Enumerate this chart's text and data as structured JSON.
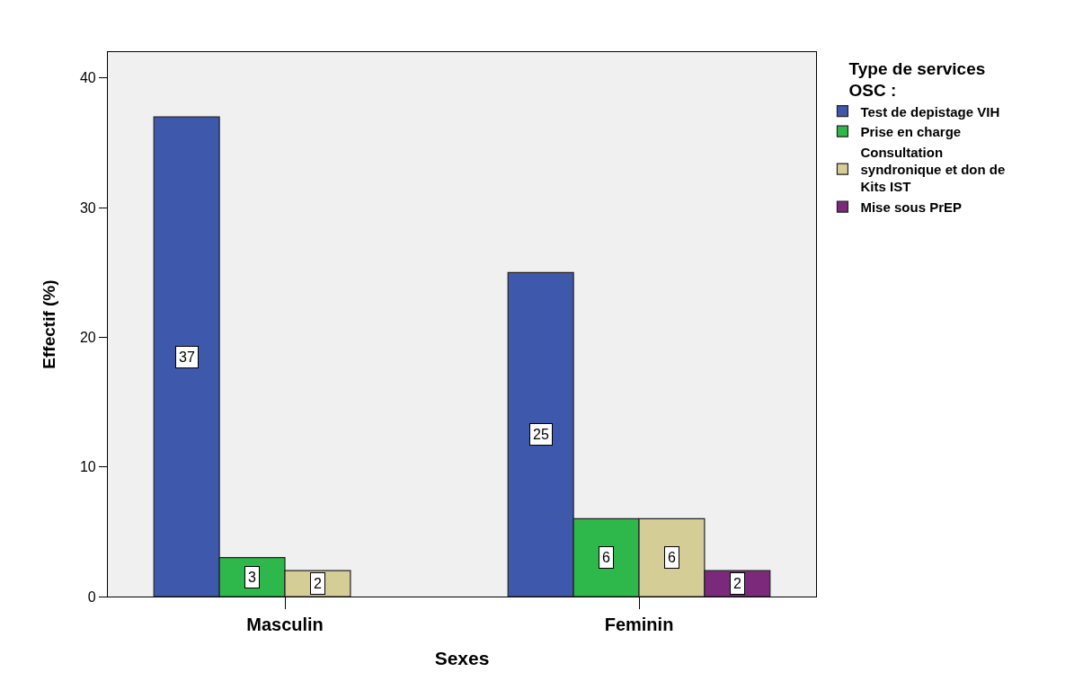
{
  "chart_data": {
    "type": "bar",
    "xlabel": "Sexes",
    "ylabel": "Effectif (%)",
    "legend_title": "Type de services OSC :",
    "categories": [
      "Masculin",
      "Feminin"
    ],
    "series": [
      {
        "name": "Test de depistage VIH",
        "color": "#3e58ac",
        "values": [
          37,
          25
        ]
      },
      {
        "name": "Prise en charge",
        "color": "#2eb84b",
        "values": [
          3,
          6
        ]
      },
      {
        "name": "Consultation syndronique et don de Kits IST",
        "color": "#d4cd96",
        "values": [
          2,
          6
        ]
      },
      {
        "name": "Mise sous PrEP",
        "color": "#7b2a7b",
        "values": [
          null,
          2
        ]
      }
    ],
    "ylim": [
      0,
      42
    ],
    "yticks": [
      0,
      10,
      20,
      30,
      40
    ],
    "legend": "right",
    "data_labels": true
  }
}
